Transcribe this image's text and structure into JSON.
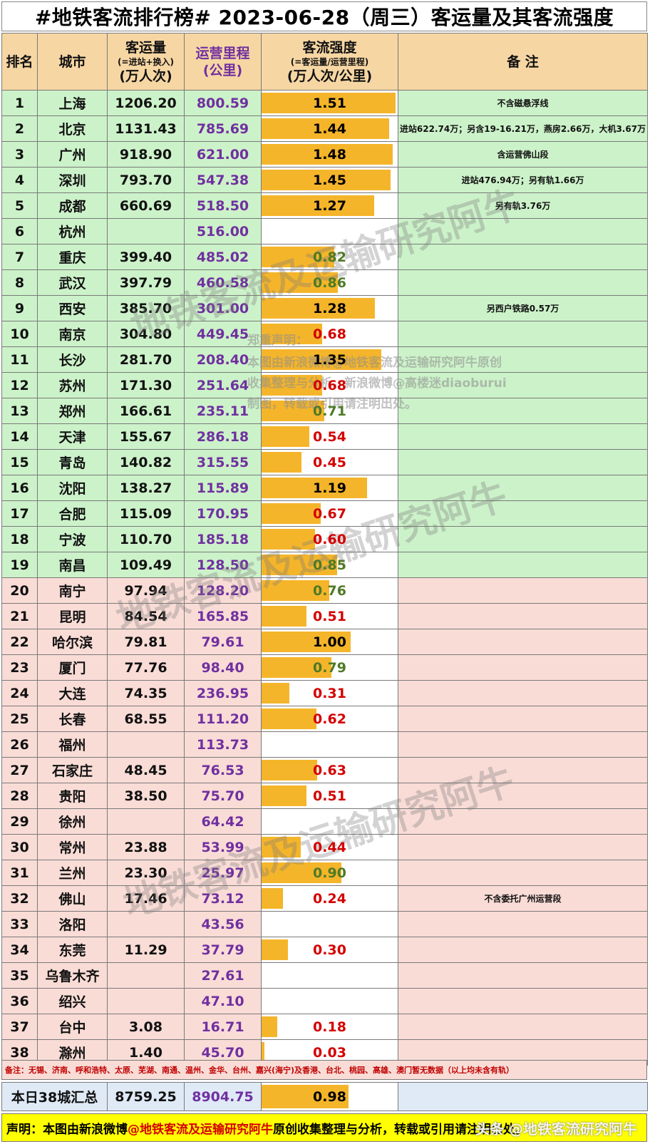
{
  "title": "#地铁客流排行榜# 2023-06-28（周三）客运量及其客流强度",
  "headers": {
    "rank": "排名",
    "city": "城市",
    "ridership_main": "客运量",
    "ridership_sub": "(=进站+换入)",
    "ridership_unit": "(万人次)",
    "mileage_main": "运营里程",
    "mileage_unit": "(公里)",
    "intensity_main": "客流强度",
    "intensity_sub": "(=客运量/运营里程)",
    "intensity_unit": "(万人次/公里)",
    "note": "备 注"
  },
  "colors": {
    "green_row": "#ccf2c9",
    "pink_row": "#f9dcd6",
    "bar": "#f5b52a",
    "header": "#f6d6a3",
    "mileage_text": "#7030a0",
    "low_intensity_text": "#d40000",
    "mid_intensity_text": "#4e7a25"
  },
  "rows": [
    {
      "rank": "1",
      "city": "上海",
      "ridership": "1206.20",
      "mileage": "800.59",
      "intensity": "1.51",
      "note": "不含磁悬浮线"
    },
    {
      "rank": "2",
      "city": "北京",
      "ridership": "1131.43",
      "mileage": "785.69",
      "intensity": "1.44",
      "note": "进站622.74万；另含19-16.21万，燕房2.66万，大机3.67万"
    },
    {
      "rank": "3",
      "city": "广州",
      "ridership": "918.90",
      "mileage": "621.00",
      "intensity": "1.48",
      "note": "含运营佛山段"
    },
    {
      "rank": "4",
      "city": "深圳",
      "ridership": "793.70",
      "mileage": "547.38",
      "intensity": "1.45",
      "note": "进站476.94万；另有轨1.66万"
    },
    {
      "rank": "5",
      "city": "成都",
      "ridership": "660.69",
      "mileage": "518.50",
      "intensity": "1.27",
      "note": "另有轨3.76万"
    },
    {
      "rank": "6",
      "city": "杭州",
      "ridership": "",
      "mileage": "516.00",
      "intensity": "",
      "note": ""
    },
    {
      "rank": "7",
      "city": "重庆",
      "ridership": "399.40",
      "mileage": "485.02",
      "intensity": "0.82",
      "note": ""
    },
    {
      "rank": "8",
      "city": "武汉",
      "ridership": "397.79",
      "mileage": "460.58",
      "intensity": "0.86",
      "note": ""
    },
    {
      "rank": "9",
      "city": "西安",
      "ridership": "385.70",
      "mileage": "301.00",
      "intensity": "1.28",
      "note": "另西户铁路0.57万"
    },
    {
      "rank": "10",
      "city": "南京",
      "ridership": "304.80",
      "mileage": "449.45",
      "intensity": "0.68",
      "note": ""
    },
    {
      "rank": "11",
      "city": "长沙",
      "ridership": "281.70",
      "mileage": "208.40",
      "intensity": "1.35",
      "note": ""
    },
    {
      "rank": "12",
      "city": "苏州",
      "ridership": "171.30",
      "mileage": "251.64",
      "intensity": "0.68",
      "note": ""
    },
    {
      "rank": "13",
      "city": "郑州",
      "ridership": "166.61",
      "mileage": "235.11",
      "intensity": "0.71",
      "note": ""
    },
    {
      "rank": "14",
      "city": "天津",
      "ridership": "155.67",
      "mileage": "286.18",
      "intensity": "0.54",
      "note": ""
    },
    {
      "rank": "15",
      "city": "青岛",
      "ridership": "140.82",
      "mileage": "315.55",
      "intensity": "0.45",
      "note": ""
    },
    {
      "rank": "16",
      "city": "沈阳",
      "ridership": "138.27",
      "mileage": "115.89",
      "intensity": "1.19",
      "note": ""
    },
    {
      "rank": "17",
      "city": "合肥",
      "ridership": "115.09",
      "mileage": "170.95",
      "intensity": "0.67",
      "note": ""
    },
    {
      "rank": "18",
      "city": "宁波",
      "ridership": "110.70",
      "mileage": "185.18",
      "intensity": "0.60",
      "note": ""
    },
    {
      "rank": "19",
      "city": "南昌",
      "ridership": "109.49",
      "mileage": "128.50",
      "intensity": "0.85",
      "note": ""
    },
    {
      "rank": "20",
      "city": "南宁",
      "ridership": "97.94",
      "mileage": "128.20",
      "intensity": "0.76",
      "note": ""
    },
    {
      "rank": "21",
      "city": "昆明",
      "ridership": "84.54",
      "mileage": "165.85",
      "intensity": "0.51",
      "note": ""
    },
    {
      "rank": "22",
      "city": "哈尔滨",
      "ridership": "79.81",
      "mileage": "79.61",
      "intensity": "1.00",
      "note": ""
    },
    {
      "rank": "23",
      "city": "厦门",
      "ridership": "77.76",
      "mileage": "98.40",
      "intensity": "0.79",
      "note": ""
    },
    {
      "rank": "24",
      "city": "大连",
      "ridership": "74.35",
      "mileage": "236.95",
      "intensity": "0.31",
      "note": ""
    },
    {
      "rank": "25",
      "city": "长春",
      "ridership": "68.55",
      "mileage": "111.20",
      "intensity": "0.62",
      "note": ""
    },
    {
      "rank": "26",
      "city": "福州",
      "ridership": "",
      "mileage": "113.73",
      "intensity": "",
      "note": ""
    },
    {
      "rank": "27",
      "city": "石家庄",
      "ridership": "48.45",
      "mileage": "76.53",
      "intensity": "0.63",
      "note": ""
    },
    {
      "rank": "28",
      "city": "贵阳",
      "ridership": "38.50",
      "mileage": "75.70",
      "intensity": "0.51",
      "note": ""
    },
    {
      "rank": "29",
      "city": "徐州",
      "ridership": "",
      "mileage": "64.42",
      "intensity": "",
      "note": ""
    },
    {
      "rank": "30",
      "city": "常州",
      "ridership": "23.88",
      "mileage": "53.99",
      "intensity": "0.44",
      "note": ""
    },
    {
      "rank": "31",
      "city": "兰州",
      "ridership": "23.30",
      "mileage": "25.97",
      "intensity": "0.90",
      "note": ""
    },
    {
      "rank": "32",
      "city": "佛山",
      "ridership": "17.46",
      "mileage": "73.12",
      "intensity": "0.24",
      "note": "不含委托广州运营段"
    },
    {
      "rank": "33",
      "city": "洛阳",
      "ridership": "",
      "mileage": "43.56",
      "intensity": "",
      "note": ""
    },
    {
      "rank": "34",
      "city": "东莞",
      "ridership": "11.29",
      "mileage": "37.79",
      "intensity": "0.30",
      "note": ""
    },
    {
      "rank": "35",
      "city": "乌鲁木齐",
      "ridership": "",
      "mileage": "27.61",
      "intensity": "",
      "note": ""
    },
    {
      "rank": "36",
      "city": "绍兴",
      "ridership": "",
      "mileage": "47.10",
      "intensity": "",
      "note": ""
    },
    {
      "rank": "37",
      "city": "台中",
      "ridership": "3.08",
      "mileage": "16.71",
      "intensity": "0.18",
      "note": ""
    },
    {
      "rank": "38",
      "city": "滁州",
      "ridership": "1.40",
      "mileage": "45.70",
      "intensity": "0.03",
      "note": ""
    }
  ],
  "footnote": "备注：无锡、济南、呼和浩特、太原、芜湖、南通、温州、金华、台州、嘉兴(海宁)及香港、台北、桃园、高雄、澳门暂无数据（以上均未含有轨）",
  "total": {
    "label": "本日38城汇总",
    "ridership": "8759.25",
    "mileage": "8904.75",
    "intensity": "0.98"
  },
  "declaration": {
    "prefix": "声明：本图由新浪微博",
    "highlight": "@地铁客流及运输研究阿牛",
    "suffix": " 原创收集整理与分析，转载或引用请注明出处。"
  },
  "watermark": {
    "notice_title": "郑重声明：",
    "notice_lines": [
      "本图由新浪微博@地铁客流及运输研究阿牛原创",
      "收集整理与分析，新浪微博@高楼迷diaoburui",
      "制图，转载或引用请注明出处。"
    ],
    "logo_text": "地铁客流及运输研究阿牛",
    "credit": "头条 @地铁客流研究阿牛"
  }
}
